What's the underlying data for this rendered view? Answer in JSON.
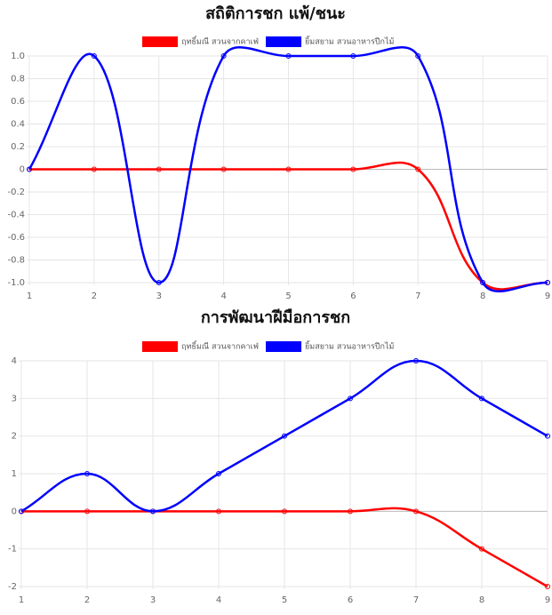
{
  "chart_data": [
    {
      "type": "line",
      "title": "สถิติการชก แพ้/ชนะ",
      "categories": [
        1,
        2,
        3,
        4,
        5,
        6,
        7,
        8,
        9
      ],
      "series": [
        {
          "name": "ฤทธิ์มณี สวนจากคาเฟ่",
          "color": "#ff0000",
          "values": [
            0,
            0,
            0,
            0,
            0,
            0,
            0,
            -1,
            -1
          ]
        },
        {
          "name": "ยิ้มสยาม สวนอาหารปีกไม้",
          "color": "#0000ff",
          "values": [
            0,
            1,
            -1,
            1,
            1,
            1,
            1,
            -1,
            -1
          ]
        }
      ],
      "ylim": [
        -1,
        1
      ],
      "yticks": [
        {
          "value": -1,
          "label": "-1.0"
        },
        -0.8,
        -0.6,
        -0.4,
        -0.2,
        0,
        0.2,
        0.4,
        0.6,
        0.8,
        {
          "value": 1,
          "label": "1.0"
        }
      ],
      "grid": true
    },
    {
      "type": "line",
      "title": "การพัฒนาฝีมือการชก",
      "categories": [
        1,
        2,
        3,
        4,
        5,
        6,
        7,
        8,
        9
      ],
      "series": [
        {
          "name": "ฤทธิ์มณี สวนจากคาเฟ่",
          "color": "#ff0000",
          "values": [
            0,
            0,
            0,
            0,
            0,
            0,
            0,
            -1,
            -2
          ]
        },
        {
          "name": "ยิ้มสยาม สวนอาหารปีกไม้",
          "color": "#0000ff",
          "values": [
            0,
            1,
            0,
            1,
            2,
            3,
            4,
            3,
            2
          ]
        }
      ],
      "ylim": [
        -2,
        4
      ],
      "yticks": [
        -2,
        -1,
        0,
        1,
        2,
        3,
        4
      ],
      "grid": true
    }
  ]
}
